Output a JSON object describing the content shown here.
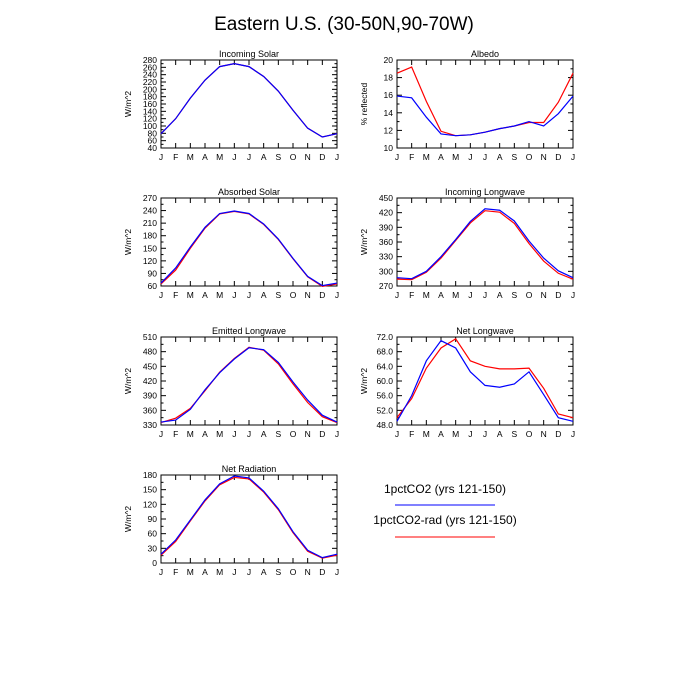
{
  "figure": {
    "title": "Eastern U.S. (30-50N,90-70W)",
    "months": [
      "J",
      "F",
      "M",
      "A",
      "M",
      "J",
      "J",
      "A",
      "S",
      "O",
      "N",
      "D",
      "J"
    ],
    "colors": {
      "blue": "#0000ff",
      "red": "#ff0000"
    }
  },
  "legend": {
    "items": [
      {
        "label": "1pctCO2 (yrs 121-150)",
        "color": "#0000ff"
      },
      {
        "label": "1pctCO2-rad (yrs 121-150)",
        "color": "#ff0000"
      }
    ]
  },
  "chart_data": [
    {
      "type": "line",
      "title": "Incoming Solar",
      "ylabel": "W/m^2",
      "ylim": [
        40,
        280
      ],
      "yticks": [
        "280",
        "260",
        "240",
        "220",
        "200",
        "180",
        "160",
        "140",
        "120",
        "100",
        "80",
        "60",
        "40"
      ],
      "x": [
        "J",
        "F",
        "M",
        "A",
        "M",
        "J",
        "J",
        "A",
        "S",
        "O",
        "N",
        "D",
        "J"
      ],
      "series": [
        {
          "name": "1pctCO2 (yrs 121-150)",
          "color": "#0000ff",
          "values": [
            79,
            120,
            176,
            225,
            262,
            270,
            262,
            235,
            195,
            143,
            94,
            70,
            79
          ]
        },
        {
          "name": "1pctCO2-rad (yrs 121-150)",
          "color": "#ff0000",
          "values": [
            79,
            120,
            176,
            225,
            262,
            270,
            262,
            235,
            195,
            143,
            94,
            70,
            79
          ]
        }
      ]
    },
    {
      "type": "line",
      "title": "Albedo",
      "ylabel": "% reflected",
      "ylim": [
        10,
        20
      ],
      "yticks": [
        "20",
        "18",
        "16",
        "14",
        "12",
        "10"
      ],
      "x": [
        "J",
        "F",
        "M",
        "A",
        "M",
        "J",
        "J",
        "A",
        "S",
        "O",
        "N",
        "D",
        "J"
      ],
      "series": [
        {
          "name": "1pctCO2 (yrs 121-150)",
          "color": "#0000ff",
          "values": [
            15.9,
            15.7,
            13.5,
            11.6,
            11.4,
            11.5,
            11.8,
            12.2,
            12.5,
            13.0,
            12.5,
            13.9,
            15.9
          ]
        },
        {
          "name": "1pctCO2-rad (yrs 121-150)",
          "color": "#ff0000",
          "values": [
            18.5,
            19.2,
            15.3,
            11.9,
            11.4,
            11.5,
            11.8,
            12.2,
            12.5,
            12.9,
            12.9,
            15.2,
            18.5
          ]
        }
      ]
    },
    {
      "type": "line",
      "title": "Absorbed Solar",
      "ylabel": "W/m^2",
      "ylim": [
        60,
        270
      ],
      "yticks": [
        "270",
        "240",
        "210",
        "180",
        "150",
        "120",
        "90",
        "60"
      ],
      "x": [
        "J",
        "F",
        "M",
        "A",
        "M",
        "J",
        "J",
        "A",
        "S",
        "O",
        "N",
        "D",
        "J"
      ],
      "series": [
        {
          "name": "1pctCO2 (yrs 121-150)",
          "color": "#0000ff",
          "values": [
            67,
            103,
            153,
            200,
            233,
            239,
            233,
            208,
            172,
            126,
            83,
            61,
            67
          ]
        },
        {
          "name": "1pctCO2-rad (yrs 121-150)",
          "color": "#ff0000",
          "values": [
            65,
            98,
            150,
            198,
            232,
            238,
            232,
            207,
            171,
            125,
            82,
            59,
            65
          ]
        }
      ]
    },
    {
      "type": "line",
      "title": "Incoming Longwave",
      "ylabel": "W/m^2",
      "ylim": [
        270,
        450
      ],
      "yticks": [
        "450",
        "420",
        "390",
        "360",
        "330",
        "300",
        "270"
      ],
      "x": [
        "J",
        "F",
        "M",
        "A",
        "M",
        "J",
        "J",
        "A",
        "S",
        "O",
        "N",
        "D",
        "J"
      ],
      "series": [
        {
          "name": "1pctCO2 (yrs 121-150)",
          "color": "#0000ff",
          "values": [
            287,
            285,
            300,
            330,
            365,
            402,
            428,
            425,
            403,
            362,
            327,
            301,
            287
          ]
        },
        {
          "name": "1pctCO2-rad (yrs 121-150)",
          "color": "#ff0000",
          "values": [
            284,
            283,
            298,
            327,
            363,
            399,
            424,
            421,
            398,
            357,
            321,
            296,
            284
          ]
        }
      ]
    },
    {
      "type": "line",
      "title": "Emitted Longwave",
      "ylabel": "W/m^2",
      "ylim": [
        330,
        510
      ],
      "yticks": [
        "510",
        "480",
        "450",
        "420",
        "390",
        "360",
        "330"
      ],
      "x": [
        "J",
        "F",
        "M",
        "A",
        "M",
        "J",
        "J",
        "A",
        "S",
        "O",
        "N",
        "D",
        "J"
      ],
      "series": [
        {
          "name": "1pctCO2 (yrs 121-150)",
          "color": "#0000ff",
          "values": [
            336,
            340,
            362,
            402,
            437,
            465,
            488,
            484,
            458,
            418,
            381,
            350,
            336
          ]
        },
        {
          "name": "1pctCO2-rad (yrs 121-150)",
          "color": "#ff0000",
          "values": [
            335,
            344,
            364,
            400,
            438,
            466,
            489,
            483,
            455,
            414,
            376,
            347,
            335
          ]
        }
      ]
    },
    {
      "type": "line",
      "title": "Net Longwave",
      "ylabel": "W/m^2",
      "ylim": [
        48,
        72
      ],
      "yticks": [
        "72.0",
        "68.0",
        "64.0",
        "60.0",
        "56.0",
        "52.0",
        "48.0"
      ],
      "x": [
        "J",
        "F",
        "M",
        "A",
        "M",
        "J",
        "J",
        "A",
        "S",
        "O",
        "N",
        "D",
        "J"
      ],
      "series": [
        {
          "name": "1pctCO2 (yrs 121-150)",
          "color": "#0000ff",
          "values": [
            49.0,
            56.0,
            65.5,
            71.0,
            69.0,
            62.5,
            58.8,
            58.3,
            59.2,
            62.5,
            56.3,
            50.0,
            49.0
          ]
        },
        {
          "name": "1pctCO2-rad (yrs 121-150)",
          "color": "#ff0000",
          "values": [
            50.0,
            55.2,
            63.5,
            69.0,
            71.5,
            65.5,
            64.0,
            63.3,
            63.3,
            63.5,
            58.0,
            51.0,
            50.0
          ]
        }
      ]
    },
    {
      "type": "line",
      "title": "Net Radiation",
      "ylabel": "W/m^2",
      "ylim": [
        0,
        180
      ],
      "yticks": [
        "180",
        "150",
        "120",
        "90",
        "60",
        "30",
        "0"
      ],
      "x": [
        "J",
        "F",
        "M",
        "A",
        "M",
        "J",
        "J",
        "A",
        "S",
        "O",
        "N",
        "D",
        "J"
      ],
      "series": [
        {
          "name": "1pctCO2 (yrs 121-150)",
          "color": "#0000ff",
          "values": [
            18,
            47,
            88,
            129,
            162,
            178,
            174,
            147,
            111,
            64,
            26,
            11,
            18
          ]
        },
        {
          "name": "1pctCO2-rad (yrs 121-150)",
          "color": "#ff0000",
          "values": [
            16,
            44,
            86,
            127,
            160,
            175,
            172,
            145,
            109,
            62,
            24,
            10,
            16
          ]
        }
      ]
    }
  ]
}
